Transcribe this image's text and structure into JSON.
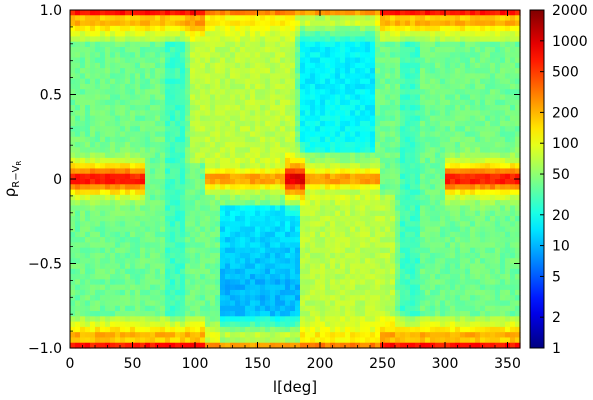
{
  "chart_data": {
    "type": "heatmap",
    "xlabel": "l[deg]",
    "ylabel_main": "ρ",
    "ylabel_sub": "R−V",
    "ylabel_sub2": "R",
    "xlim": [
      0,
      360
    ],
    "ylim": [
      -1.0,
      1.0
    ],
    "x_ticks": [
      0,
      50,
      100,
      150,
      200,
      250,
      300,
      350
    ],
    "y_ticks": [
      -1.0,
      -0.5,
      0,
      0.5,
      1.0
    ],
    "y_tick_labels": [
      "−1.0",
      "−0.5",
      "0",
      "0.5",
      "1.0"
    ],
    "colorbar": {
      "scale": "log",
      "range": [
        1,
        2000
      ],
      "ticks": [
        1,
        2,
        5,
        10,
        20,
        50,
        100,
        200,
        500,
        1000,
        2000
      ],
      "tick_labels": [
        "1",
        "2",
        "5",
        "10",
        "20",
        "50",
        "100",
        "200",
        "500",
        "1000",
        "2000"
      ],
      "colormap": [
        "#00007f",
        "#0000ff",
        "#007fff",
        "#00ffff",
        "#7fff7f",
        "#ffff00",
        "#ff7f00",
        "#ff0000",
        "#7f0000"
      ]
    }
  }
}
